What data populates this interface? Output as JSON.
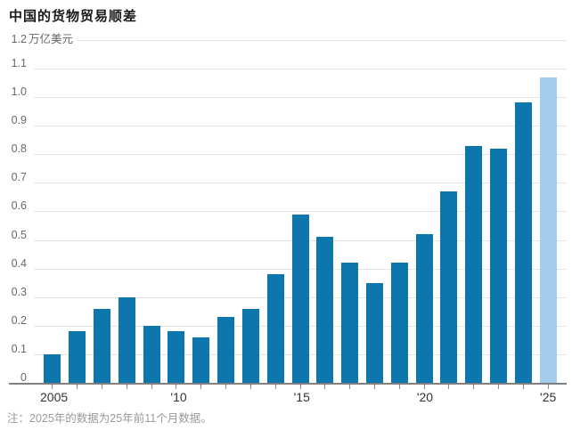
{
  "header": {
    "title": "中国的货物贸易顺差"
  },
  "note": {
    "text": "注：2025年的数据为25年前11个月数据。"
  },
  "chart_data": {
    "type": "bar",
    "title": "中国的货物贸易顺差",
    "unit_top_tick": "1.2",
    "unit_label": "万亿美元",
    "categories": [
      2005,
      2006,
      2007,
      2008,
      2009,
      2010,
      2011,
      2012,
      2013,
      2014,
      2015,
      2016,
      2017,
      2018,
      2019,
      2020,
      2021,
      2022,
      2023,
      2024,
      2025
    ],
    "values": [
      0.1,
      0.18,
      0.26,
      0.3,
      0.2,
      0.18,
      0.16,
      0.23,
      0.26,
      0.38,
      0.59,
      0.51,
      0.42,
      0.35,
      0.42,
      0.52,
      0.67,
      0.83,
      0.82,
      0.98,
      1.07
    ],
    "highlight_index": 20,
    "ylim": [
      0,
      1.2
    ],
    "grid": true,
    "legend_position": "none",
    "xlabel": "",
    "ylabel": "万亿美元",
    "y_ticks": [
      {
        "v": 0,
        "label": "0"
      },
      {
        "v": 0.1,
        "label": "0.1"
      },
      {
        "v": 0.2,
        "label": "0.2"
      },
      {
        "v": 0.3,
        "label": "0.3"
      },
      {
        "v": 0.4,
        "label": "0.4"
      },
      {
        "v": 0.5,
        "label": "0.5"
      },
      {
        "v": 0.6,
        "label": "0.6"
      },
      {
        "v": 0.7,
        "label": "0.7"
      },
      {
        "v": 0.8,
        "label": "0.8"
      },
      {
        "v": 0.9,
        "label": "0.9"
      },
      {
        "v": 1.0,
        "label": "1.0"
      },
      {
        "v": 1.1,
        "label": "1.1"
      },
      {
        "v": 1.2,
        "label": "1.2"
      }
    ],
    "x_axis_labels": [
      {
        "index": 0,
        "label": "2005"
      },
      {
        "index": 5,
        "label": "'10"
      },
      {
        "index": 10,
        "label": "'15"
      },
      {
        "index": 15,
        "label": "'20"
      },
      {
        "index": 20,
        "label": "'25"
      }
    ],
    "colors": {
      "bar": "#0d76ad",
      "highlight": "#a2cdee",
      "gridline": "#e4e4e4",
      "axis": "#7f7f7f"
    }
  }
}
